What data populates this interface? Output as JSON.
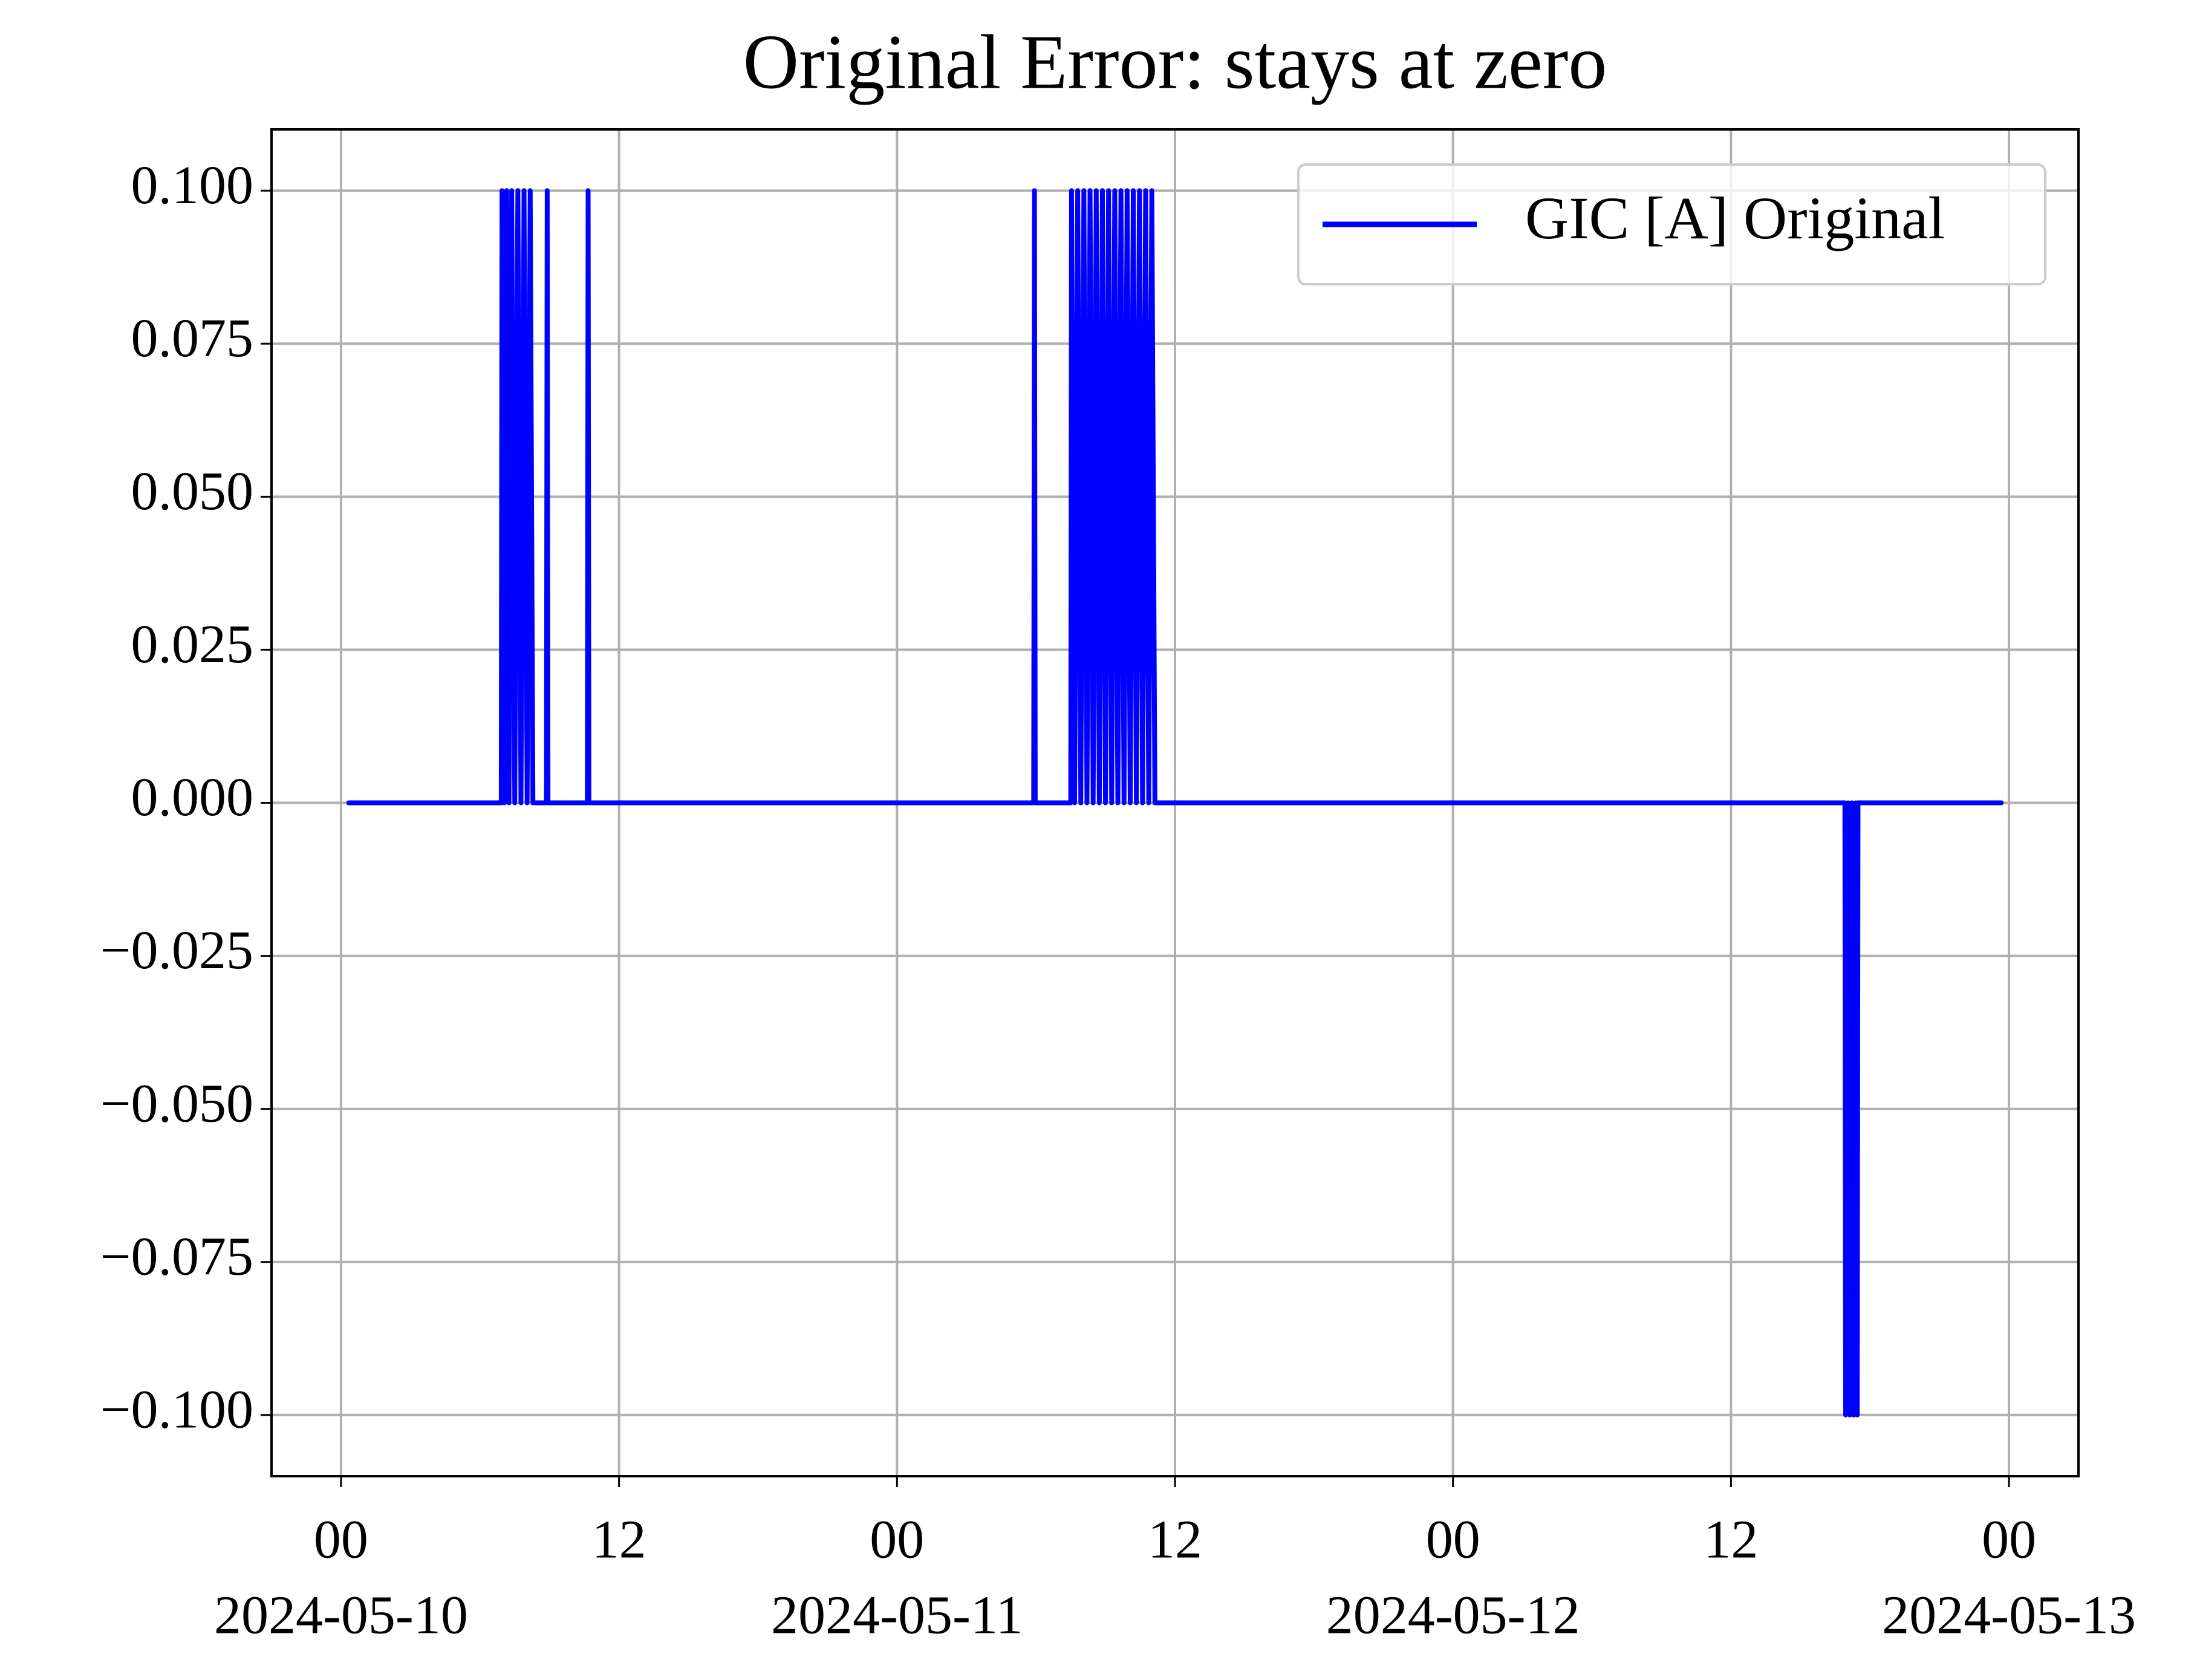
{
  "chart_data": {
    "type": "line",
    "title": "Original Error: stays at zero",
    "x": [
      "2024-05-10T00:20",
      "2024-05-10T06:55",
      "2024-05-10T06:57",
      "2024-05-10T07:03",
      "2024-05-10T07:09",
      "2024-05-10T07:15",
      "2024-05-10T07:22",
      "2024-05-10T07:30",
      "2024-05-10T07:38",
      "2024-05-10T07:46",
      "2024-05-10T07:54",
      "2024-05-10T08:02",
      "2024-05-10T08:10",
      "2024-05-10T08:17",
      "2024-05-10T08:52",
      "2024-05-10T08:54",
      "2024-05-10T08:56",
      "2024-05-10T10:38",
      "2024-05-10T10:40",
      "2024-05-10T10:42",
      "2024-05-11T05:54",
      "2024-05-11T05:56",
      "2024-05-11T05:58",
      "2024-05-11T07:30",
      "2024-05-11T07:32",
      "2024-05-11T07:40",
      "2024-05-11T07:48",
      "2024-05-11T07:56",
      "2024-05-11T08:04",
      "2024-05-11T08:12",
      "2024-05-11T08:20",
      "2024-05-11T08:28",
      "2024-05-11T08:36",
      "2024-05-11T08:44",
      "2024-05-11T08:52",
      "2024-05-11T09:00",
      "2024-05-11T09:08",
      "2024-05-11T09:16",
      "2024-05-11T09:24",
      "2024-05-11T09:32",
      "2024-05-11T09:40",
      "2024-05-11T09:48",
      "2024-05-11T09:56",
      "2024-05-11T10:04",
      "2024-05-11T10:12",
      "2024-05-11T10:20",
      "2024-05-11T10:28",
      "2024-05-11T10:36",
      "2024-05-11T10:44",
      "2024-05-11T10:52",
      "2024-05-11T11:00",
      "2024-05-11T11:08",
      "2024-05-12T16:55",
      "2024-05-12T16:57",
      "2024-05-12T17:03",
      "2024-05-12T17:08",
      "2024-05-12T17:13",
      "2024-05-12T17:18",
      "2024-05-12T17:23",
      "2024-05-12T17:27",
      "2024-05-12T17:29",
      "2024-05-12T23:40"
    ],
    "series": [
      {
        "name": "GIC [A] Original",
        "color": "#0000ff",
        "values": [
          0,
          0,
          0.1,
          0,
          0.1,
          0,
          0.1,
          0,
          0.1,
          0,
          0.1,
          0,
          0.1,
          0,
          0,
          0.1,
          0,
          0,
          0.1,
          0,
          0,
          0.1,
          0,
          0,
          0.1,
          0,
          0.1,
          0,
          0.1,
          0,
          0.1,
          0,
          0.1,
          0,
          0.1,
          0,
          0.1,
          0,
          0.1,
          0,
          0.1,
          0,
          0.1,
          0,
          0.1,
          0,
          0.1,
          0,
          0.1,
          0,
          0.1,
          0,
          0,
          -0.1,
          0,
          -0.1,
          0,
          -0.1,
          0,
          -0.1,
          0,
          0
        ]
      }
    ],
    "xlim": [
      "2024-05-09T21:00",
      "2024-05-13T03:00"
    ],
    "xticks": [
      {
        "value": "2024-05-10T00:00",
        "label": [
          "00",
          "2024-05-10"
        ]
      },
      {
        "value": "2024-05-10T12:00",
        "label": [
          "12"
        ]
      },
      {
        "value": "2024-05-11T00:00",
        "label": [
          "00",
          "2024-05-11"
        ]
      },
      {
        "value": "2024-05-11T12:00",
        "label": [
          "12"
        ]
      },
      {
        "value": "2024-05-12T00:00",
        "label": [
          "00",
          "2024-05-12"
        ]
      },
      {
        "value": "2024-05-12T12:00",
        "label": [
          "12"
        ]
      },
      {
        "value": "2024-05-13T00:00",
        "label": [
          "00",
          "2024-05-13"
        ]
      }
    ],
    "ylim": [
      -0.11,
      0.11
    ],
    "yticks": [
      {
        "value": -0.1,
        "label": "−0.100"
      },
      {
        "value": -0.075,
        "label": "−0.075"
      },
      {
        "value": -0.05,
        "label": "−0.050"
      },
      {
        "value": -0.025,
        "label": "−0.025"
      },
      {
        "value": 0,
        "label": "0.000"
      },
      {
        "value": 0.025,
        "label": "0.025"
      },
      {
        "value": 0.05,
        "label": "0.050"
      },
      {
        "value": 0.075,
        "label": "0.075"
      },
      {
        "value": 0.1,
        "label": "0.100"
      }
    ],
    "grid": true,
    "legend": "upper right"
  }
}
